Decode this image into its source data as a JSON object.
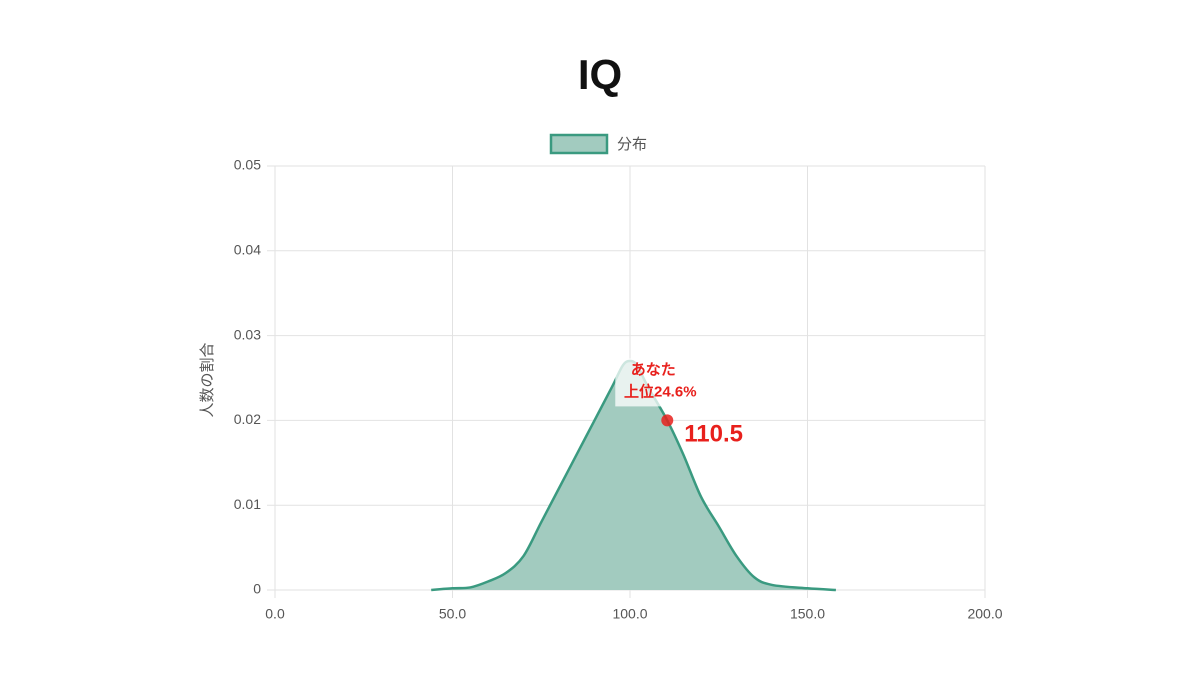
{
  "chart_data": {
    "type": "area",
    "title": "IQ",
    "ylabel": "人数の割合",
    "x": [
      44,
      50,
      55,
      60,
      65,
      70,
      75,
      80,
      85,
      90,
      95,
      98,
      100,
      102,
      105,
      110.5,
      115,
      120,
      125,
      130,
      135,
      140,
      150,
      158
    ],
    "series": [
      {
        "name": "分布",
        "color": "#3a9a80",
        "fill": "#a2cbbf",
        "values": [
          0,
          0.0002,
          0.0003,
          0.001,
          0.002,
          0.004,
          0.008,
          0.012,
          0.016,
          0.02,
          0.024,
          0.0265,
          0.027,
          0.0265,
          0.024,
          0.02,
          0.016,
          0.011,
          0.0075,
          0.004,
          0.0015,
          0.0006,
          0.0002,
          0
        ]
      }
    ],
    "xlim": [
      0,
      200
    ],
    "xticks": [
      {
        "value": 0,
        "label": "0.0"
      },
      {
        "value": 50,
        "label": "50.0"
      },
      {
        "value": 100,
        "label": "100.0"
      },
      {
        "value": 150,
        "label": "150.0"
      },
      {
        "value": 200,
        "label": "200.0"
      }
    ],
    "ylim": [
      0,
      0.05
    ],
    "yticks": [
      0,
      0.01,
      0.02,
      0.03,
      0.04,
      0.05
    ],
    "grid": true,
    "legend": "top",
    "marker": {
      "x": 110.5,
      "y": 0.02,
      "color": "#e8201c",
      "annotation": [
        "あなた",
        "上位24.6%"
      ]
    }
  }
}
